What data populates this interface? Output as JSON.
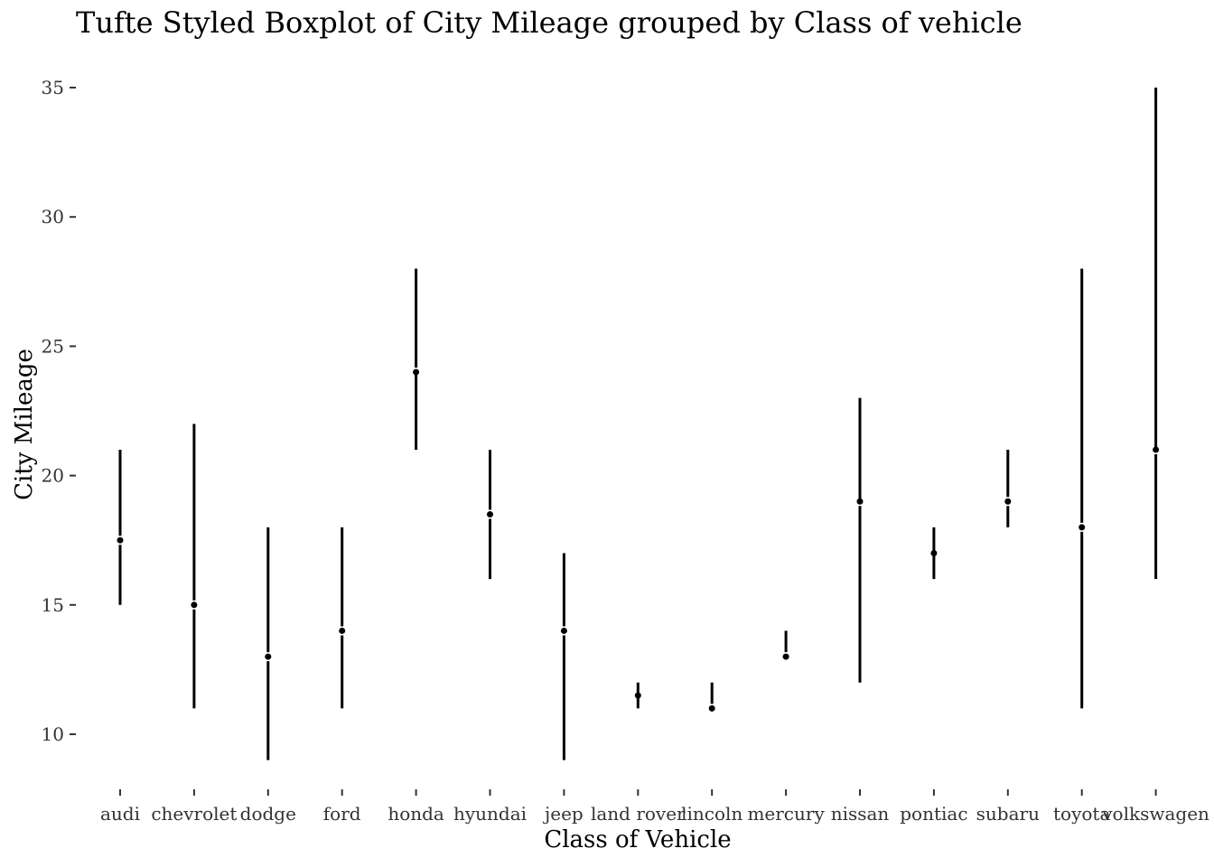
{
  "chart_data": {
    "type": "boxplot",
    "title": "Tufte Styled Boxplot of City Mileage grouped by Class of vehicle",
    "xlabel": "Class of Vehicle",
    "ylabel": "City Mileage",
    "ylim": [
      8,
      36
    ],
    "yticks": [
      10,
      15,
      20,
      25,
      30,
      35
    ],
    "grid": false,
    "style": "tufte",
    "categories": [
      "audi",
      "chevrolet",
      "dodge",
      "ford",
      "honda",
      "hyundai",
      "jeep",
      "land rover",
      "lincoln",
      "mercury",
      "nissan",
      "pontiac",
      "subaru",
      "toyota",
      "volkswagen"
    ],
    "boxes": [
      {
        "category": "audi",
        "min": 15,
        "q1": 16,
        "median": 17.5,
        "q3": 18.75,
        "max": 21
      },
      {
        "category": "chevrolet",
        "min": 11,
        "q1": 13.5,
        "median": 15,
        "q3": 16.5,
        "max": 22
      },
      {
        "category": "dodge",
        "min": 9,
        "q1": 11,
        "median": 13,
        "q3": 15,
        "max": 18
      },
      {
        "category": "ford",
        "min": 11,
        "q1": 13,
        "median": 14,
        "q3": 15,
        "max": 18
      },
      {
        "category": "honda",
        "min": 21,
        "q1": 24,
        "median": 24,
        "q3": 25,
        "max": 28
      },
      {
        "category": "hyundai",
        "min": 16,
        "q1": 18,
        "median": 18.5,
        "q3": 19.75,
        "max": 21
      },
      {
        "category": "jeep",
        "min": 9,
        "q1": 12.5,
        "median": 14,
        "q3": 15,
        "max": 17
      },
      {
        "category": "land rover",
        "min": 11,
        "q1": 11.5,
        "median": 11.5,
        "q3": 11.5,
        "max": 12
      },
      {
        "category": "lincoln",
        "min": 11,
        "q1": 11,
        "median": 11,
        "q3": 11.5,
        "max": 12
      },
      {
        "category": "mercury",
        "min": 13,
        "q1": 13,
        "median": 13,
        "q3": 13.25,
        "max": 14
      },
      {
        "category": "nissan",
        "min": 12,
        "q1": 15,
        "median": 19,
        "q3": 19,
        "max": 23
      },
      {
        "category": "pontiac",
        "min": 16,
        "q1": 17,
        "median": 17,
        "q3": 17,
        "max": 18
      },
      {
        "category": "subaru",
        "min": 18,
        "q1": 18,
        "median": 19,
        "q3": 20,
        "max": 21
      },
      {
        "category": "toyota",
        "min": 11,
        "q1": 15,
        "median": 18,
        "q3": 21,
        "max": 28
      },
      {
        "category": "volkswagen",
        "min": 16,
        "q1": 18.5,
        "median": 21,
        "q3": 21,
        "max": 35
      }
    ]
  }
}
